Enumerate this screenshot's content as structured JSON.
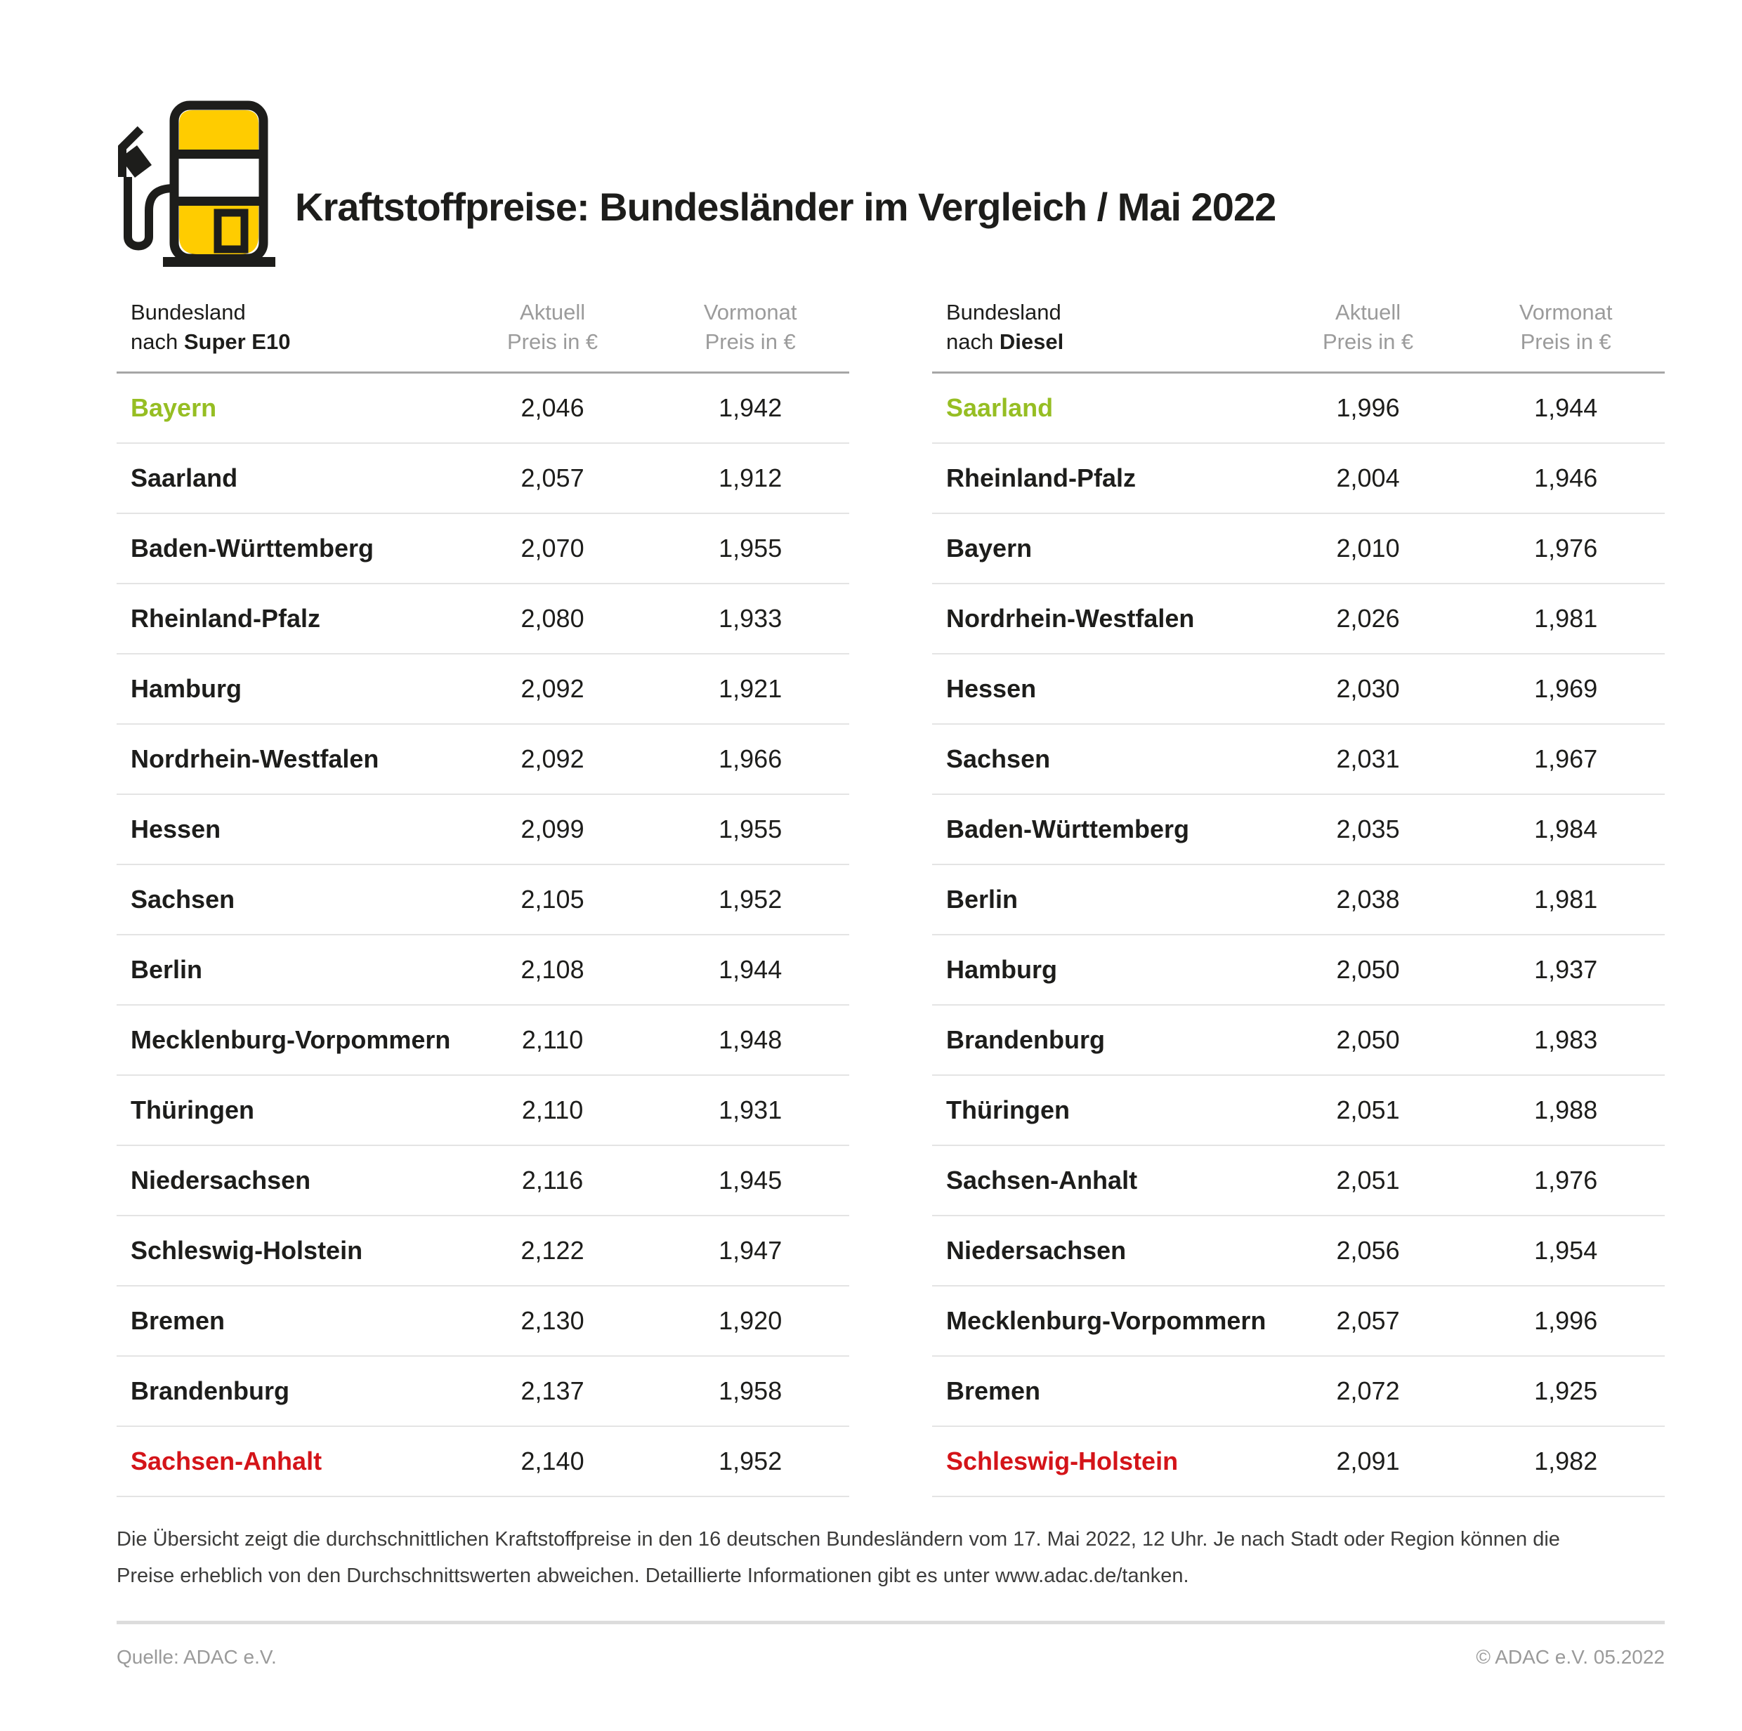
{
  "title": "Kraftstoffpreise: Bundesländer im Vergleich / Mai 2022",
  "icon": "fuel-pump-icon",
  "colors": {
    "accent_yellow": "#FFCC00",
    "outline_black": "#1D1D1B",
    "highlight_green": "#96BE23",
    "highlight_red": "#D41419"
  },
  "tables": [
    {
      "col_state_line1": "Bundesland",
      "col_state_prefix": "nach ",
      "col_state_bold": "Super E10",
      "col_aktuell_line1": "Aktuell",
      "col_aktuell_line2": "Preis in €",
      "col_vormonat_line1": "Vormonat",
      "col_vormonat_line2": "Preis in €",
      "rows": [
        {
          "state": "Bayern",
          "aktuell": "2,046",
          "vormonat": "1,942",
          "highlight": "green"
        },
        {
          "state": "Saarland",
          "aktuell": "2,057",
          "vormonat": "1,912",
          "highlight": "none"
        },
        {
          "state": "Baden-Württemberg",
          "aktuell": "2,070",
          "vormonat": "1,955",
          "highlight": "none"
        },
        {
          "state": "Rheinland-Pfalz",
          "aktuell": "2,080",
          "vormonat": "1,933",
          "highlight": "none"
        },
        {
          "state": "Hamburg",
          "aktuell": "2,092",
          "vormonat": "1,921",
          "highlight": "none"
        },
        {
          "state": "Nordrhein-Westfalen",
          "aktuell": "2,092",
          "vormonat": "1,966",
          "highlight": "none"
        },
        {
          "state": "Hessen",
          "aktuell": "2,099",
          "vormonat": "1,955",
          "highlight": "none"
        },
        {
          "state": "Sachsen",
          "aktuell": "2,105",
          "vormonat": "1,952",
          "highlight": "none"
        },
        {
          "state": "Berlin",
          "aktuell": "2,108",
          "vormonat": "1,944",
          "highlight": "none"
        },
        {
          "state": "Mecklenburg-Vorpommern",
          "aktuell": "2,110",
          "vormonat": "1,948",
          "highlight": "none"
        },
        {
          "state": "Thüringen",
          "aktuell": "2,110",
          "vormonat": "1,931",
          "highlight": "none"
        },
        {
          "state": "Niedersachsen",
          "aktuell": "2,116",
          "vormonat": "1,945",
          "highlight": "none"
        },
        {
          "state": "Schleswig-Holstein",
          "aktuell": "2,122",
          "vormonat": "1,947",
          "highlight": "none"
        },
        {
          "state": "Bremen",
          "aktuell": "2,130",
          "vormonat": "1,920",
          "highlight": "none"
        },
        {
          "state": "Brandenburg",
          "aktuell": "2,137",
          "vormonat": "1,958",
          "highlight": "none"
        },
        {
          "state": "Sachsen-Anhalt",
          "aktuell": "2,140",
          "vormonat": "1,952",
          "highlight": "red"
        }
      ]
    },
    {
      "col_state_line1": "Bundesland",
      "col_state_prefix": "nach ",
      "col_state_bold": "Diesel",
      "col_aktuell_line1": "Aktuell",
      "col_aktuell_line2": "Preis in €",
      "col_vormonat_line1": "Vormonat",
      "col_vormonat_line2": "Preis in €",
      "rows": [
        {
          "state": "Saarland",
          "aktuell": "1,996",
          "vormonat": "1,944",
          "highlight": "green"
        },
        {
          "state": "Rheinland-Pfalz",
          "aktuell": "2,004",
          "vormonat": "1,946",
          "highlight": "none"
        },
        {
          "state": "Bayern",
          "aktuell": "2,010",
          "vormonat": "1,976",
          "highlight": "none"
        },
        {
          "state": "Nordrhein-Westfalen",
          "aktuell": "2,026",
          "vormonat": "1,981",
          "highlight": "none"
        },
        {
          "state": "Hessen",
          "aktuell": "2,030",
          "vormonat": "1,969",
          "highlight": "none"
        },
        {
          "state": "Sachsen",
          "aktuell": "2,031",
          "vormonat": "1,967",
          "highlight": "none"
        },
        {
          "state": "Baden-Württemberg",
          "aktuell": "2,035",
          "vormonat": "1,984",
          "highlight": "none"
        },
        {
          "state": "Berlin",
          "aktuell": "2,038",
          "vormonat": "1,981",
          "highlight": "none"
        },
        {
          "state": "Hamburg",
          "aktuell": "2,050",
          "vormonat": "1,937",
          "highlight": "none"
        },
        {
          "state": "Brandenburg",
          "aktuell": "2,050",
          "vormonat": "1,983",
          "highlight": "none"
        },
        {
          "state": "Thüringen",
          "aktuell": "2,051",
          "vormonat": "1,988",
          "highlight": "none"
        },
        {
          "state": "Sachsen-Anhalt",
          "aktuell": "2,051",
          "vormonat": "1,976",
          "highlight": "none"
        },
        {
          "state": "Niedersachsen",
          "aktuell": "2,056",
          "vormonat": "1,954",
          "highlight": "none"
        },
        {
          "state": "Mecklenburg-Vorpommern",
          "aktuell": "2,057",
          "vormonat": "1,996",
          "highlight": "none"
        },
        {
          "state": "Bremen",
          "aktuell": "2,072",
          "vormonat": "1,925",
          "highlight": "none"
        },
        {
          "state": "Schleswig-Holstein",
          "aktuell": "2,091",
          "vormonat": "1,982",
          "highlight": "red"
        }
      ]
    }
  ],
  "footer": {
    "note_line1": "Die Übersicht zeigt die durchschnittlichen Kraftstoffpreise in den 16 deutschen Bundesländern vom 17. Mai 2022, 12 Uhr. Je nach Stadt oder Region können die",
    "note_line2": "Preise erheblich von den Durchschnittswerten abweichen. Detaillierte Informationen gibt es unter www.adac.de/tanken.",
    "source": "Quelle: ADAC e.V.",
    "copyright": "© ADAC e.V. 05.2022"
  },
  "chart_data": [
    {
      "type": "table",
      "title": "Bundesland nach Super E10",
      "columns": [
        "Bundesland",
        "Aktuell Preis in €",
        "Vormonat Preis in €"
      ],
      "rows": [
        [
          "Bayern",
          2.046,
          1.942
        ],
        [
          "Saarland",
          2.057,
          1.912
        ],
        [
          "Baden-Württemberg",
          2.07,
          1.955
        ],
        [
          "Rheinland-Pfalz",
          2.08,
          1.933
        ],
        [
          "Hamburg",
          2.092,
          1.921
        ],
        [
          "Nordrhein-Westfalen",
          2.092,
          1.966
        ],
        [
          "Hessen",
          2.099,
          1.955
        ],
        [
          "Sachsen",
          2.105,
          1.952
        ],
        [
          "Berlin",
          2.108,
          1.944
        ],
        [
          "Mecklenburg-Vorpommern",
          2.11,
          1.948
        ],
        [
          "Thüringen",
          2.11,
          1.931
        ],
        [
          "Niedersachsen",
          2.116,
          1.945
        ],
        [
          "Schleswig-Holstein",
          2.122,
          1.947
        ],
        [
          "Bremen",
          2.13,
          1.92
        ],
        [
          "Brandenburg",
          2.137,
          1.958
        ],
        [
          "Sachsen-Anhalt",
          2.14,
          1.952
        ]
      ],
      "annotations": {
        "cheapest_green": "Bayern",
        "most_expensive_red": "Sachsen-Anhalt"
      }
    },
    {
      "type": "table",
      "title": "Bundesland nach Diesel",
      "columns": [
        "Bundesland",
        "Aktuell Preis in €",
        "Vormonat Preis in €"
      ],
      "rows": [
        [
          "Saarland",
          1.996,
          1.944
        ],
        [
          "Rheinland-Pfalz",
          2.004,
          1.946
        ],
        [
          "Bayern",
          2.01,
          1.976
        ],
        [
          "Nordrhein-Westfalen",
          2.026,
          1.981
        ],
        [
          "Hessen",
          2.03,
          1.969
        ],
        [
          "Sachsen",
          2.031,
          1.967
        ],
        [
          "Baden-Württemberg",
          2.035,
          1.984
        ],
        [
          "Berlin",
          2.038,
          1.981
        ],
        [
          "Hamburg",
          2.05,
          1.937
        ],
        [
          "Brandenburg",
          2.05,
          1.983
        ],
        [
          "Thüringen",
          2.051,
          1.988
        ],
        [
          "Sachsen-Anhalt",
          2.051,
          1.976
        ],
        [
          "Niedersachsen",
          2.056,
          1.954
        ],
        [
          "Mecklenburg-Vorpommern",
          2.057,
          1.996
        ],
        [
          "Bremen",
          2.072,
          1.925
        ],
        [
          "Schleswig-Holstein",
          2.091,
          1.982
        ]
      ],
      "annotations": {
        "cheapest_green": "Saarland",
        "most_expensive_red": "Schleswig-Holstein"
      }
    }
  ]
}
